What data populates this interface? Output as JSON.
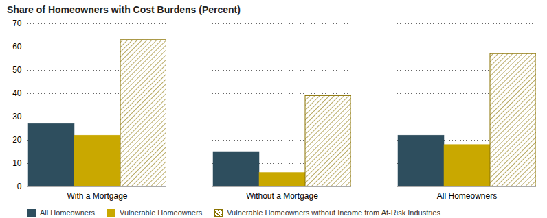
{
  "chart_data": {
    "type": "bar",
    "title": "Share of Homeowners with Cost Burdens (Percent)",
    "categories": [
      "With a Mortgage",
      "Without a Mortgage",
      "All Homeowners"
    ],
    "series": [
      {
        "name": "All Homeowners",
        "color": "#2e4e5e",
        "values": [
          27,
          15,
          22
        ]
      },
      {
        "name": "Vulnerable Homeowners",
        "color": "#c9a800",
        "values": [
          22,
          6,
          18
        ]
      },
      {
        "name": "Vulnerable Homeowners without Income from At-Risk Industries",
        "color": "#8a7200",
        "values": [
          63,
          39,
          57
        ]
      }
    ],
    "ylim": [
      0,
      70
    ],
    "yticks": [
      0,
      10,
      20,
      30,
      40,
      50,
      60,
      70
    ],
    "grid": true,
    "legend": "bottom"
  }
}
